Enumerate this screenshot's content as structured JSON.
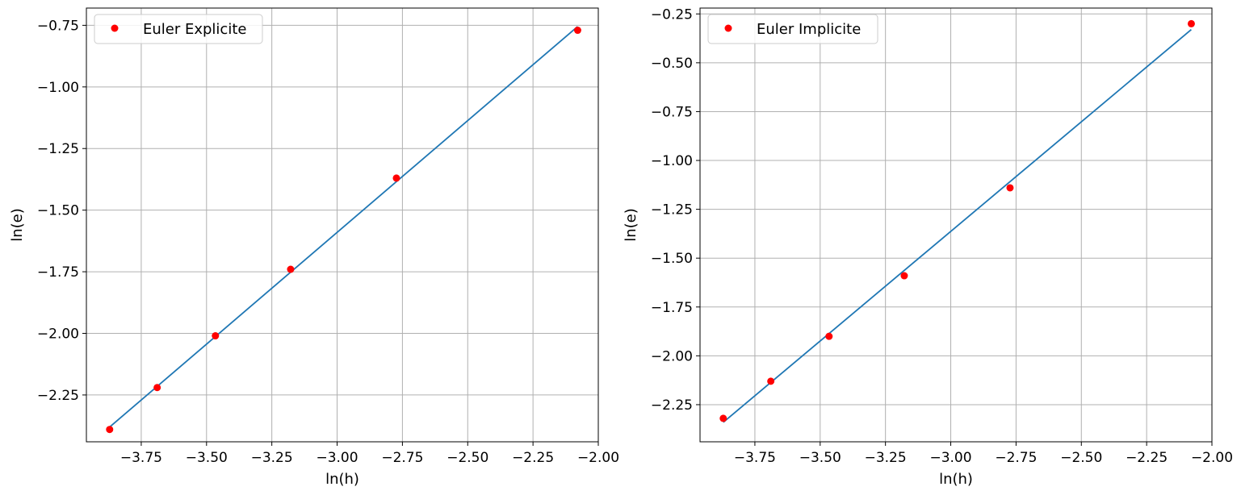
{
  "chart_data": [
    {
      "type": "scatter",
      "xlabel": "ln(h)",
      "ylabel": "ln(e)",
      "xlim": [
        -3.96,
        -2.0
      ],
      "ylim": [
        -2.44,
        -0.68
      ],
      "xticks": [
        -3.75,
        -3.5,
        -3.25,
        -3.0,
        -2.75,
        -2.5,
        -2.25,
        -2.0
      ],
      "xtick_labels": [
        "−3.75",
        "−3.50",
        "−3.25",
        "−3.00",
        "−2.75",
        "−2.50",
        "−2.25",
        "−2.00"
      ],
      "yticks": [
        -2.25,
        -2.0,
        -1.75,
        -1.5,
        -1.25,
        -1.0,
        -0.75
      ],
      "ytick_labels": [
        "−2.25",
        "−2.00",
        "−1.75",
        "−1.50",
        "−1.25",
        "−1.00",
        "−0.75"
      ],
      "grid": true,
      "legend_position": "top-left",
      "series": [
        {
          "name": "Euler Explicite",
          "kind": "scatter",
          "color": "#ff0000",
          "x": [
            -3.871,
            -3.689,
            -3.466,
            -3.178,
            -2.773,
            -2.079
          ],
          "y": [
            -2.39,
            -2.22,
            -2.01,
            -1.74,
            -1.37,
            -0.77
          ]
        },
        {
          "kind": "line",
          "color": "#1f77b4",
          "x": [
            -3.871,
            -2.079
          ],
          "y": [
            -2.38,
            -0.755
          ]
        }
      ]
    },
    {
      "type": "scatter",
      "xlabel": "ln(h)",
      "ylabel": "ln(e)",
      "xlim": [
        -3.96,
        -2.0
      ],
      "ylim": [
        -2.44,
        -0.22
      ],
      "xticks": [
        -3.75,
        -3.5,
        -3.25,
        -3.0,
        -2.75,
        -2.5,
        -2.25,
        -2.0
      ],
      "xtick_labels": [
        "−3.75",
        "−3.50",
        "−3.25",
        "−3.00",
        "−2.75",
        "−2.50",
        "−2.25",
        "−2.00"
      ],
      "yticks": [
        -2.25,
        -2.0,
        -1.75,
        -1.5,
        -1.25,
        -1.0,
        -0.75,
        -0.5,
        -0.25
      ],
      "ytick_labels": [
        "−2.25",
        "−2.00",
        "−1.75",
        "−1.50",
        "−1.25",
        "−1.00",
        "−0.75",
        "−0.50",
        "−0.25"
      ],
      "grid": true,
      "legend_position": "top-left",
      "series": [
        {
          "name": "Euler Implicite",
          "kind": "scatter",
          "color": "#ff0000",
          "x": [
            -3.871,
            -3.689,
            -3.466,
            -3.178,
            -2.773,
            -2.079
          ],
          "y": [
            -2.32,
            -2.13,
            -1.9,
            -1.59,
            -1.14,
            -0.3
          ]
        },
        {
          "kind": "line",
          "color": "#1f77b4",
          "x": [
            -3.871,
            -2.079
          ],
          "y": [
            -2.34,
            -0.33
          ]
        }
      ]
    }
  ]
}
